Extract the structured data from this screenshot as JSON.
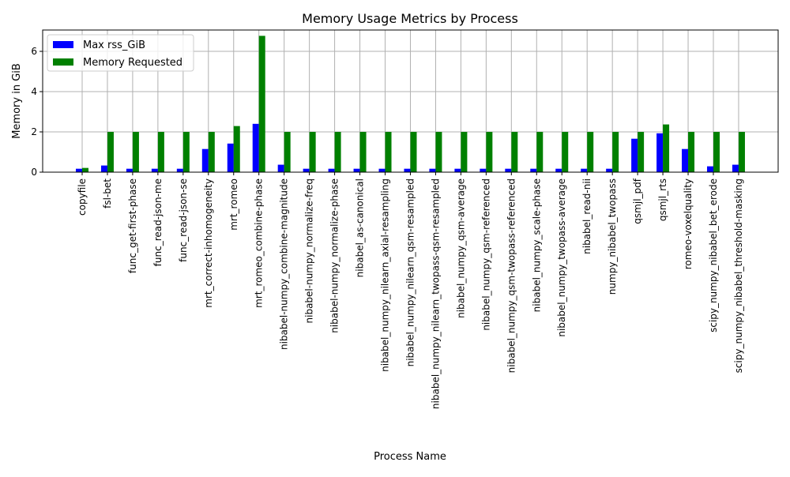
{
  "chart_data": {
    "type": "bar",
    "title": "Memory Usage Metrics by Process",
    "xlabel": "Process Name",
    "ylabel": "Memory in GiB",
    "ylim": [
      0,
      7.06
    ],
    "yticks": [
      0,
      2,
      4,
      6
    ],
    "grid": true,
    "legend_position": "top-left",
    "categories": [
      "copyfile",
      "fsl-bet",
      "func_get-first-phase",
      "func_read-json-me",
      "func_read-json-se",
      "mrt_correct-inhomogeneity",
      "mrt_romeo",
      "mrt_romeo_combine-phase",
      "nibabel-numpy_combine-magnitude",
      "nibabel-numpy_normalize-freq",
      "nibabel-numpy_normalize-phase",
      "nibabel_as-canonical",
      "nibabel_numpy_nilearn_axial-resampling",
      "nibabel_numpy_nilearn_qsm-resampled",
      "nibabel_numpy_nilearn_twopass-qsm-resampled",
      "nibabel_numpy_qsm-average",
      "nibabel_numpy_qsm-referenced",
      "nibabel_numpy_qsm-twopass-referenced",
      "nibabel_numpy_scale-phase",
      "nibabel_numpy_twopass-average",
      "nibabel_read-nii",
      "numpy_nibabel_twopass",
      "qsmjl_pdf",
      "qsmjl_rts",
      "romeo-voxelquality",
      "scipy_numpy_nibabel_bet_erode",
      "scipy_numpy_nibabel_threshold-masking"
    ],
    "series": [
      {
        "name": "Max rss_GiB",
        "color": "#0000ff",
        "values": [
          0.17,
          0.33,
          0.17,
          0.17,
          0.17,
          1.15,
          1.42,
          2.4,
          0.37,
          0.17,
          0.17,
          0.17,
          0.17,
          0.17,
          0.17,
          0.17,
          0.17,
          0.17,
          0.17,
          0.17,
          0.17,
          0.17,
          1.66,
          1.93,
          1.15,
          0.29,
          0.37
        ]
      },
      {
        "name": "Memory Requested",
        "color": "#008000",
        "values": [
          0.21,
          2,
          2,
          2,
          2,
          2,
          2.29,
          6.77,
          2,
          2,
          2,
          2,
          2,
          2,
          2,
          2,
          2,
          2,
          2,
          2,
          2,
          2,
          2,
          2.37,
          2,
          2,
          2
        ]
      }
    ]
  }
}
